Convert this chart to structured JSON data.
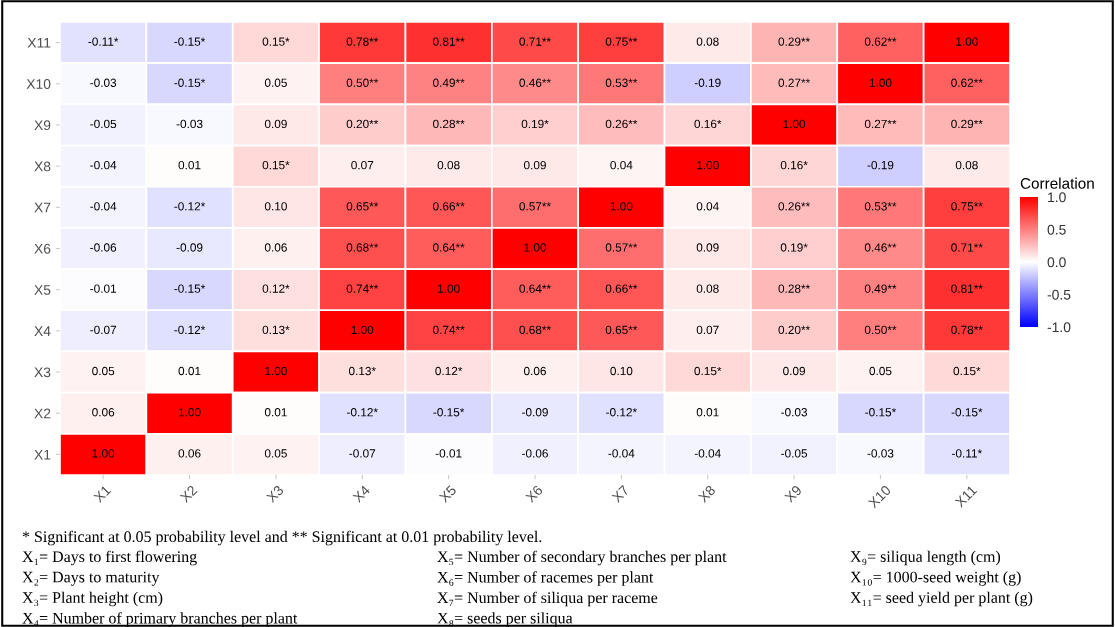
{
  "chart_data": {
    "type": "heatmap",
    "categories": [
      "X1",
      "X2",
      "X3",
      "X4",
      "X5",
      "X6",
      "X7",
      "X8",
      "X9",
      "X10",
      "X11"
    ],
    "y_categories": [
      "X11",
      "X10",
      "X9",
      "X8",
      "X7",
      "X6",
      "X5",
      "X4",
      "X3",
      "X2",
      "X1"
    ],
    "cells": [
      [
        -0.11,
        -0.15,
        0.15,
        0.78,
        0.81,
        0.71,
        0.75,
        0.08,
        0.29,
        0.62,
        1.0
      ],
      [
        -0.03,
        -0.15,
        0.05,
        0.5,
        0.49,
        0.46,
        0.53,
        -0.19,
        0.27,
        1.0,
        0.62
      ],
      [
        -0.05,
        -0.03,
        0.09,
        0.2,
        0.28,
        0.19,
        0.26,
        0.16,
        1.0,
        0.27,
        0.29
      ],
      [
        -0.04,
        0.01,
        0.15,
        0.07,
        0.08,
        0.09,
        0.04,
        1.0,
        0.16,
        -0.19,
        0.08
      ],
      [
        -0.04,
        -0.12,
        0.1,
        0.65,
        0.66,
        0.57,
        1.0,
        0.04,
        0.26,
        0.53,
        0.75
      ],
      [
        -0.06,
        -0.09,
        0.06,
        0.68,
        0.64,
        1.0,
        0.57,
        0.09,
        0.19,
        0.46,
        0.71
      ],
      [
        -0.01,
        -0.15,
        0.12,
        0.74,
        1.0,
        0.64,
        0.66,
        0.08,
        0.28,
        0.49,
        0.81
      ],
      [
        -0.07,
        -0.12,
        0.13,
        1.0,
        0.74,
        0.68,
        0.65,
        0.07,
        0.2,
        0.5,
        0.78
      ],
      [
        0.05,
        0.01,
        1.0,
        0.13,
        0.12,
        0.06,
        0.1,
        0.15,
        0.09,
        0.05,
        0.15
      ],
      [
        0.06,
        1.0,
        0.01,
        -0.12,
        -0.15,
        -0.09,
        -0.12,
        0.01,
        -0.03,
        -0.15,
        -0.15
      ],
      [
        1.0,
        0.06,
        0.05,
        -0.07,
        -0.01,
        -0.06,
        -0.04,
        -0.04,
        -0.05,
        -0.03,
        -0.11
      ]
    ],
    "cell_labels": [
      [
        "-0.11*",
        "-0.15*",
        "0.15*",
        "0.78**",
        "0.81**",
        "0.71**",
        "0.75**",
        "0.08",
        "0.29**",
        "0.62**",
        "1.00"
      ],
      [
        "-0.03",
        "-0.15*",
        "0.05",
        "0.50**",
        "0.49**",
        "0.46**",
        "0.53**",
        "-0.19",
        "0.27**",
        "1.00",
        "0.62**"
      ],
      [
        "-0.05",
        "-0.03",
        "0.09",
        "0.20**",
        "0.28**",
        "0.19*",
        "0.26**",
        "0.16*",
        "1.00",
        "0.27**",
        "0.29**"
      ],
      [
        "-0.04",
        "0.01",
        "0.15*",
        "0.07",
        "0.08",
        "0.09",
        "0.04",
        "1.00",
        "0.16*",
        "-0.19",
        "0.08"
      ],
      [
        "-0.04",
        "-0.12*",
        "0.10",
        "0.65**",
        "0.66**",
        "0.57**",
        "1.00",
        "0.04",
        "0.26**",
        "0.53**",
        "0.75**"
      ],
      [
        "-0.06",
        "-0.09",
        "0.06",
        "0.68**",
        "0.64**",
        "1.00",
        "0.57**",
        "0.09",
        "0.19*",
        "0.46**",
        "0.71**"
      ],
      [
        "-0.01",
        "-0.15*",
        "0.12*",
        "0.74**",
        "1.00",
        "0.64**",
        "0.66**",
        "0.08",
        "0.28**",
        "0.49**",
        "0.81**"
      ],
      [
        "-0.07",
        "-0.12*",
        "0.13*",
        "1.00",
        "0.74**",
        "0.68**",
        "0.65**",
        "0.07",
        "0.20**",
        "0.50**",
        "0.78**"
      ],
      [
        "0.05",
        "0.01",
        "1.00",
        "0.13*",
        "0.12*",
        "0.06",
        "0.10",
        "0.15*",
        "0.09",
        "0.05",
        "0.15*"
      ],
      [
        "0.06",
        "1.00",
        "0.01",
        "-0.12*",
        "-0.15*",
        "-0.09",
        "-0.12*",
        "0.01",
        "-0.03",
        "-0.15*",
        "-0.15*"
      ],
      [
        "1.00",
        "0.06",
        "0.05",
        "-0.07",
        "-0.01",
        "-0.06",
        "-0.04",
        "-0.04",
        "-0.05",
        "-0.03",
        "-0.11*"
      ]
    ],
    "clim": [
      -1.0,
      1.0
    ],
    "cticks": [
      {
        "value": -1.0,
        "label": "-1.0"
      },
      {
        "value": -0.5,
        "label": "-0.5"
      },
      {
        "value": 0.0,
        "label": "0.0"
      },
      {
        "value": 0.5,
        "label": "0.5"
      },
      {
        "value": 1.0,
        "label": "1.0"
      }
    ],
    "clabel": "Correlation",
    "annotations": [
      "* Significant at 0.05 probability level and ** Significant at 0.01 probability level.",
      "X₁= Days to first flowering",
      "X₂= Days to maturity",
      "X₃= Plant height (cm)",
      "X₄= Number of primary branches per plant",
      "X₅= Number of secondary branches per plant",
      "X₆= Number of racemes per plant",
      "X₇= Number of siliqua per raceme",
      "X₈= seeds per siliqua",
      "X₉= siliqua length (cm)",
      "X₁₀= 1000-seed weight (g)",
      "X₁₁= seed yield per plant (g)"
    ]
  }
}
